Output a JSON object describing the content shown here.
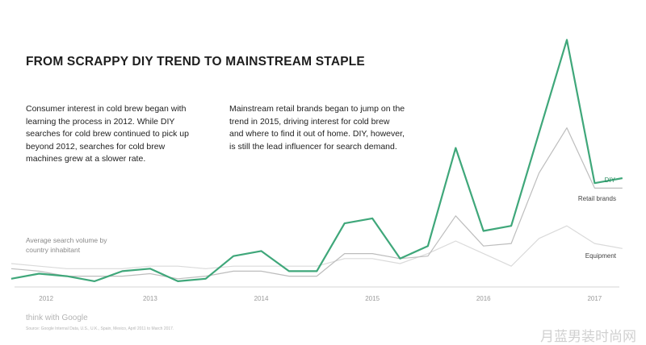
{
  "header": {
    "title": "FROM SCRAPPY DIY TREND TO MAINSTREAM STAPLE",
    "para_left": "Consumer interest in cold brew began with learning the process in 2012. While DIY searches for cold brew continued to pick up beyond 2012, searches for cold brew machines grew at a slower rate.",
    "para_right": "Mainstream retail brands began to jump on the trend in 2015, driving interest for cold brew and where to find it out of home. DIY, however, is still the lead influencer for search demand."
  },
  "footer": {
    "brand": "think with Google",
    "source": "Source: Google Internal Data, U.S., U.K., Spain, Mexico, April 2011 to March 2017.",
    "watermark": "月蓝男装时尚网"
  },
  "chart_data": {
    "type": "line",
    "ylabel": "Average search volume by country inhabitant",
    "xlabel": "",
    "x_ticks": [
      "2012",
      "2013",
      "2014",
      "2015",
      "2016",
      "2017"
    ],
    "x": [
      2011.75,
      2012.0,
      2012.25,
      2012.5,
      2012.75,
      2013.0,
      2013.25,
      2013.5,
      2013.75,
      2014.0,
      2014.25,
      2014.5,
      2014.75,
      2015.0,
      2015.25,
      2015.5,
      2015.75,
      2016.0,
      2016.25,
      2016.5,
      2016.75,
      2017.0,
      2017.25
    ],
    "xlim": [
      2011.78,
      2017.15
    ],
    "ylim": [
      0,
      100
    ],
    "series": [
      {
        "name": "DIY",
        "color": "#3fa77a",
        "values": [
          2,
          4,
          3,
          1,
          5,
          6,
          1,
          2,
          11,
          13,
          5,
          5,
          24,
          26,
          10,
          15,
          54,
          21,
          23,
          60,
          97,
          40,
          42
        ]
      },
      {
        "name": "Retail brands",
        "color": "#bdbdbd",
        "values": [
          6,
          5,
          3,
          3,
          3,
          4,
          2,
          3,
          5,
          5,
          3,
          3,
          12,
          12,
          10,
          11,
          27,
          15,
          16,
          44,
          62,
          38,
          38
        ]
      },
      {
        "name": "Equipment",
        "color": "#dadada",
        "values": [
          8,
          7,
          6,
          6,
          6,
          7,
          7,
          6,
          7,
          7,
          7,
          7,
          10,
          10,
          8,
          12,
          17,
          12,
          7,
          18,
          23,
          16,
          14
        ]
      }
    ],
    "grid": false,
    "legend": "inline at line ends (right)"
  }
}
